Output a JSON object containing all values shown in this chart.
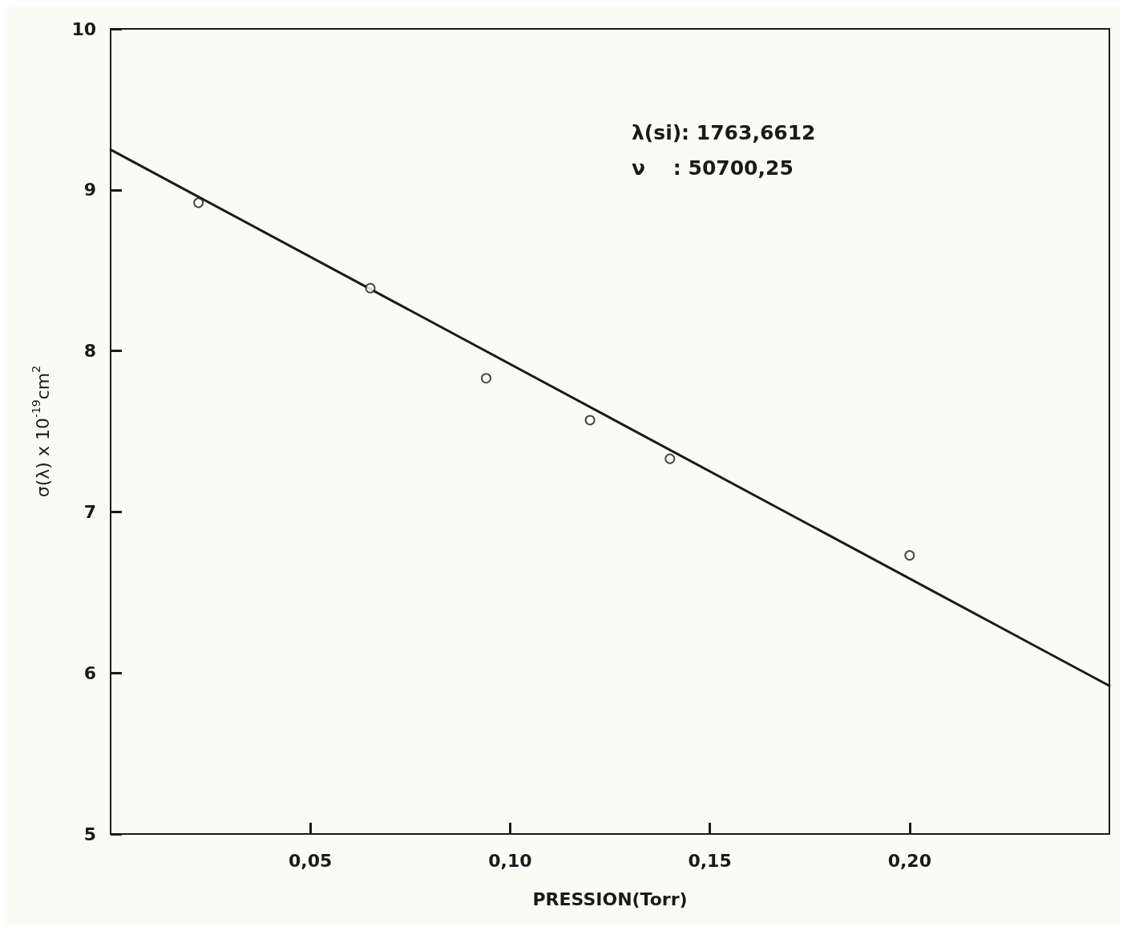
{
  "chart_data": {
    "type": "scatter",
    "xlabel": "PRESSION(Torr)",
    "ylabel": "σ(λ) x 10$^{-19}$cm$^{2}$",
    "annotations": [
      "λ(si): 1763,6612",
      "ν    : 50700,25"
    ],
    "xlim": [
      0,
      0.25
    ],
    "xticks": [
      {
        "value": 0.05,
        "label": "0,05"
      },
      {
        "value": 0.1,
        "label": "0,10"
      },
      {
        "value": 0.15,
        "label": "0,15"
      },
      {
        "value": 0.2,
        "label": "0,20"
      }
    ],
    "ylim": [
      5,
      10
    ],
    "yticks": [
      5,
      6,
      7,
      8,
      9,
      10
    ],
    "grid": false,
    "series": [
      {
        "marker": "circle",
        "color": "#1a1a1a",
        "x": [
          0.022,
          0.065,
          0.094,
          0.12,
          0.14,
          0.2
        ],
        "values": [
          8.92,
          8.39,
          7.83,
          7.57,
          7.33,
          6.73
        ]
      },
      {
        "type": "line",
        "line_style": "solid",
        "color": "#1a1a1a",
        "x": [
          0,
          0.25
        ],
        "values": [
          9.25,
          5.92
        ]
      }
    ]
  }
}
